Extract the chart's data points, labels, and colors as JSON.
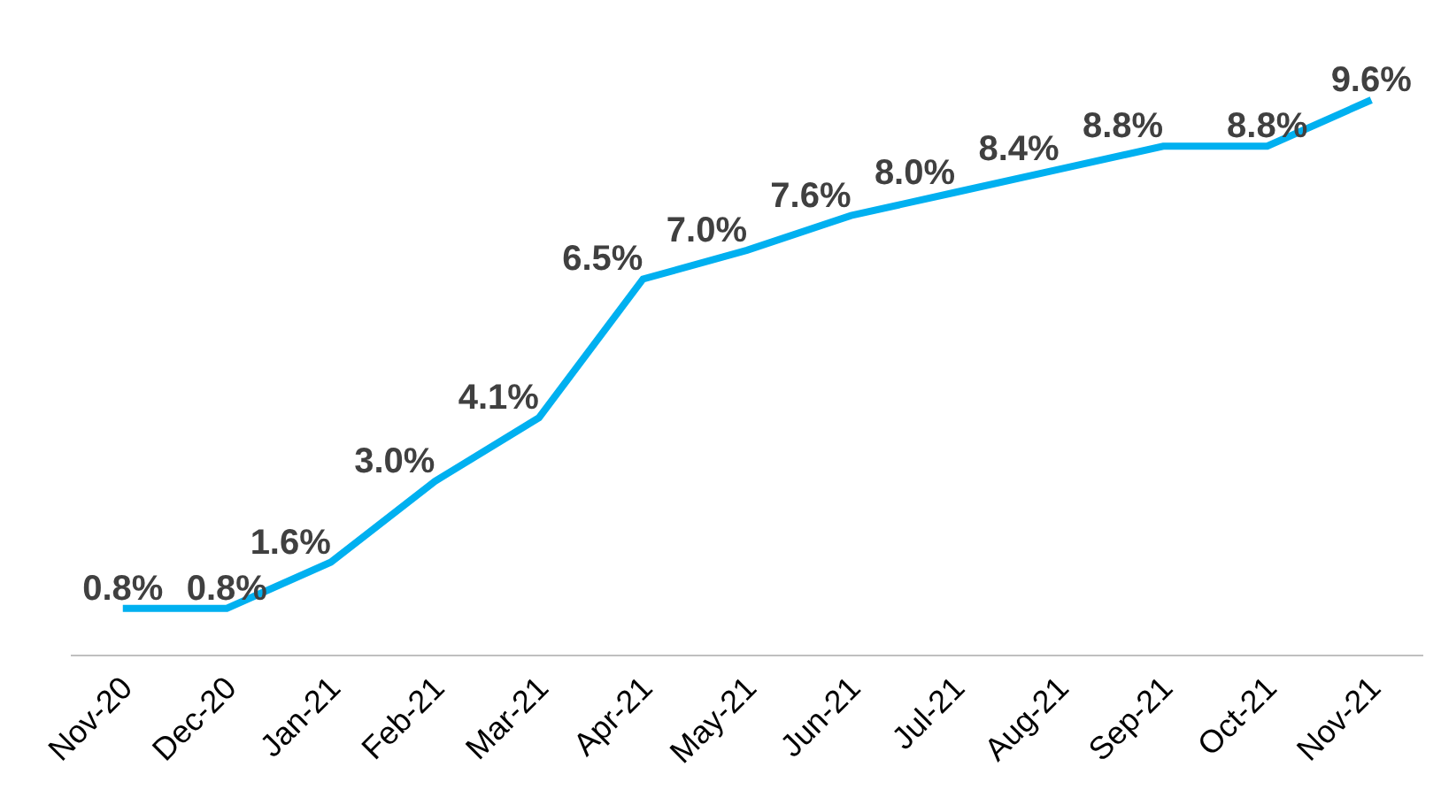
{
  "chart_data": {
    "type": "line",
    "categories": [
      "Nov-20",
      "Dec-20",
      "Jan-21",
      "Feb-21",
      "Mar-21",
      "Apr-21",
      "May-21",
      "Jun-21",
      "Jul-21",
      "Aug-21",
      "Sep-21",
      "Oct-21",
      "Nov-21"
    ],
    "series": [
      {
        "color": "#00b0f0",
        "values": [
          0.8,
          0.8,
          1.6,
          3.0,
          4.1,
          6.5,
          7.0,
          7.6,
          8.0,
          8.4,
          8.8,
          8.8,
          9.6
        ],
        "value_labels": [
          "0.8%",
          "0.8%",
          "1.6%",
          "3.0%",
          "4.1%",
          "6.5%",
          "7.0%",
          "7.6%",
          "8.0%",
          "8.4%",
          "8.8%",
          "8.8%",
          "9.6%"
        ]
      }
    ],
    "marker": "none",
    "line_style": "solid",
    "grid": false,
    "legend": false,
    "tick_labels": "x"
  }
}
